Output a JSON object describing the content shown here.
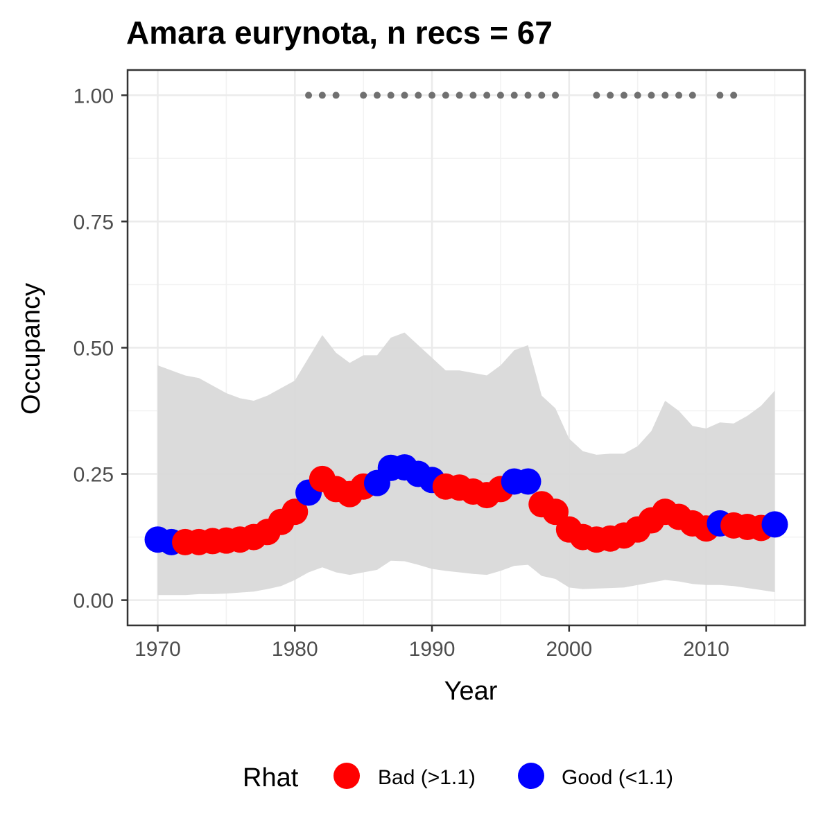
{
  "chart_data": {
    "type": "scatter",
    "title": "Amara eurynota, n recs = 67",
    "xlabel": "Year",
    "ylabel": "Occupancy",
    "xlim": [
      1967.8,
      2017.2
    ],
    "ylim": [
      -0.05,
      1.05
    ],
    "x_ticks": [
      1970,
      1980,
      1990,
      2000,
      2010
    ],
    "x_tick_labels": [
      "1970",
      "1980",
      "1990",
      "2000",
      "2010"
    ],
    "y_ticks": [
      0,
      0.25,
      0.5,
      0.75,
      1.0
    ],
    "y_tick_labels": [
      "0.00",
      "0.25",
      "0.50",
      "0.75",
      "1.00"
    ],
    "grid": true,
    "legend": {
      "position": "bottom",
      "title": "Rhat",
      "entries": [
        {
          "label": "Bad (>1.1)",
          "color": "#ff0000"
        },
        {
          "label": "Good (<1.1)",
          "color": "#0000ff"
        }
      ]
    },
    "colors": {
      "bad": "#ff0000",
      "good": "#0000ff",
      "ribbon": "#d9d9d9",
      "record_marks": "#707070"
    },
    "years": [
      1970,
      1971,
      1972,
      1973,
      1974,
      1975,
      1976,
      1977,
      1978,
      1979,
      1980,
      1981,
      1982,
      1983,
      1984,
      1985,
      1986,
      1987,
      1988,
      1989,
      1990,
      1991,
      1992,
      1993,
      1994,
      1995,
      1996,
      1997,
      1998,
      1999,
      2000,
      2001,
      2002,
      2003,
      2004,
      2005,
      2006,
      2007,
      2008,
      2009,
      2010,
      2011,
      2012,
      2013,
      2014,
      2015
    ],
    "series": [
      {
        "occupancy": [
          0.12,
          0.115,
          0.115,
          0.115,
          0.117,
          0.118,
          0.12,
          0.125,
          0.135,
          0.155,
          0.175,
          0.213,
          0.24,
          0.22,
          0.21,
          0.225,
          0.232,
          0.262,
          0.263,
          0.25,
          0.238,
          0.225,
          0.223,
          0.215,
          0.208,
          0.22,
          0.235,
          0.235,
          0.19,
          0.175,
          0.14,
          0.125,
          0.12,
          0.122,
          0.128,
          0.14,
          0.158,
          0.175,
          0.165,
          0.152,
          0.142,
          0.152,
          0.148,
          0.145,
          0.143,
          0.15
        ],
        "rhat_status": [
          "good",
          "good",
          "bad",
          "bad",
          "bad",
          "bad",
          "bad",
          "bad",
          "bad",
          "bad",
          "bad",
          "good",
          "bad",
          "bad",
          "bad",
          "bad",
          "good",
          "good",
          "good",
          "good",
          "good",
          "bad",
          "bad",
          "bad",
          "bad",
          "bad",
          "good",
          "good",
          "bad",
          "bad",
          "bad",
          "bad",
          "bad",
          "bad",
          "bad",
          "bad",
          "bad",
          "bad",
          "bad",
          "bad",
          "bad",
          "good",
          "bad",
          "bad",
          "bad",
          "good"
        ],
        "lower_ci": [
          0.01,
          0.01,
          0.01,
          0.012,
          0.012,
          0.013,
          0.015,
          0.017,
          0.022,
          0.028,
          0.04,
          0.055,
          0.065,
          0.055,
          0.05,
          0.055,
          0.06,
          0.078,
          0.077,
          0.07,
          0.062,
          0.058,
          0.055,
          0.052,
          0.05,
          0.058,
          0.068,
          0.07,
          0.048,
          0.042,
          0.025,
          0.022,
          0.023,
          0.024,
          0.025,
          0.03,
          0.035,
          0.04,
          0.037,
          0.032,
          0.03,
          0.03,
          0.028,
          0.024,
          0.02,
          0.016
        ],
        "upper_ci": [
          0.465,
          0.455,
          0.445,
          0.44,
          0.425,
          0.41,
          0.4,
          0.395,
          0.405,
          0.42,
          0.435,
          0.48,
          0.525,
          0.49,
          0.47,
          0.485,
          0.485,
          0.52,
          0.53,
          0.505,
          0.48,
          0.455,
          0.455,
          0.45,
          0.445,
          0.465,
          0.495,
          0.505,
          0.405,
          0.38,
          0.32,
          0.295,
          0.288,
          0.29,
          0.29,
          0.305,
          0.335,
          0.395,
          0.375,
          0.345,
          0.34,
          0.352,
          0.35,
          0.365,
          0.385,
          0.415
        ]
      }
    ],
    "record_years": [
      1981,
      1982,
      1983,
      1985,
      1986,
      1987,
      1988,
      1989,
      1990,
      1991,
      1992,
      1993,
      1994,
      1995,
      1996,
      1997,
      1998,
      1999,
      2002,
      2003,
      2004,
      2005,
      2006,
      2007,
      2008,
      2009,
      2011,
      2012
    ],
    "record_value": 1.0
  }
}
